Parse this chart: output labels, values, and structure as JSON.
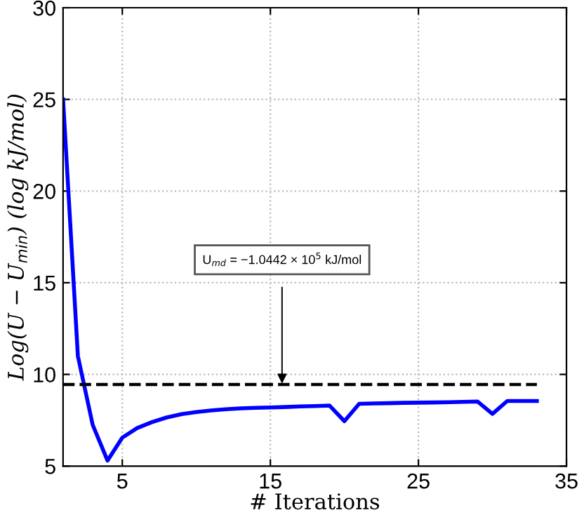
{
  "chart_data": {
    "type": "line",
    "xlabel": "# Iterations",
    "ylabel": "Log(U − U$_{min}$) (log kJ/mol)",
    "x": [
      1,
      2,
      3,
      4,
      5,
      6,
      7,
      8,
      9,
      10,
      11,
      12,
      13,
      14,
      15,
      16,
      17,
      18,
      19,
      20,
      21,
      22,
      23,
      24,
      25,
      26,
      27,
      28,
      29,
      30,
      31,
      32,
      33
    ],
    "series": [
      {
        "color": "#0000ff",
        "values": [
          25,
          11.0,
          7.25,
          5.3,
          6.55,
          7.07,
          7.4,
          7.65,
          7.83,
          7.95,
          8.03,
          8.1,
          8.15,
          8.18,
          8.2,
          8.22,
          8.25,
          8.27,
          8.3,
          7.45,
          8.4,
          8.42,
          8.43,
          8.45,
          8.46,
          8.47,
          8.48,
          8.5,
          8.52,
          7.85,
          8.55,
          8.55,
          8.55
        ]
      }
    ],
    "ref_lines": [
      {
        "axis": "y",
        "value": 9.45,
        "color": "#000000",
        "line_style": "dashed"
      }
    ],
    "annotations": [
      "U$_{md}$ = −1.0442 × 10$^{5}$ kJ/mol"
    ],
    "xlim": [
      1,
      35
    ],
    "xticks": [
      5,
      15,
      25,
      35
    ],
    "ylim": [
      5,
      30
    ],
    "yticks": [
      5,
      10,
      15,
      20,
      25,
      30
    ],
    "grid": true,
    "line_style": "solid",
    "marker": "none"
  }
}
